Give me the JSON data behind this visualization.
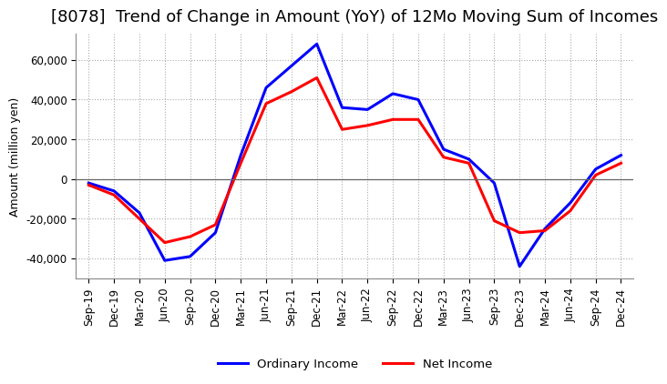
{
  "title": "[8078]  Trend of Change in Amount (YoY) of 12Mo Moving Sum of Incomes",
  "ylabel": "Amount (million yen)",
  "background_color": "#ffffff",
  "ordinary_color": "#0000ff",
  "net_color": "#ff0000",
  "x_labels": [
    "Sep-19",
    "Dec-19",
    "Mar-20",
    "Jun-20",
    "Sep-20",
    "Dec-20",
    "Mar-21",
    "Jun-21",
    "Sep-21",
    "Dec-21",
    "Mar-22",
    "Jun-22",
    "Sep-22",
    "Dec-22",
    "Mar-23",
    "Jun-23",
    "Sep-23",
    "Dec-23",
    "Mar-24",
    "Jun-24",
    "Sep-24",
    "Dec-24"
  ],
  "ordinary_income": [
    -2000,
    -6000,
    -17000,
    -41000,
    -39000,
    -27000,
    12000,
    46000,
    57000,
    68000,
    36000,
    35000,
    43000,
    40000,
    15000,
    10000,
    -2000,
    -44000,
    -25000,
    -12000,
    5000,
    12000
  ],
  "net_income": [
    -3000,
    -8000,
    -20000,
    -32000,
    -29000,
    -23000,
    8000,
    38000,
    44000,
    51000,
    25000,
    27000,
    30000,
    30000,
    11000,
    8000,
    -21000,
    -27000,
    -26000,
    -16000,
    2000,
    8000
  ],
  "ylim": [
    -50000,
    73000
  ],
  "yticks": [
    -40000,
    -20000,
    0,
    20000,
    40000,
    60000
  ],
  "line_width": 2.2,
  "title_fontsize": 13,
  "label_fontsize": 9,
  "tick_fontsize": 8.5
}
